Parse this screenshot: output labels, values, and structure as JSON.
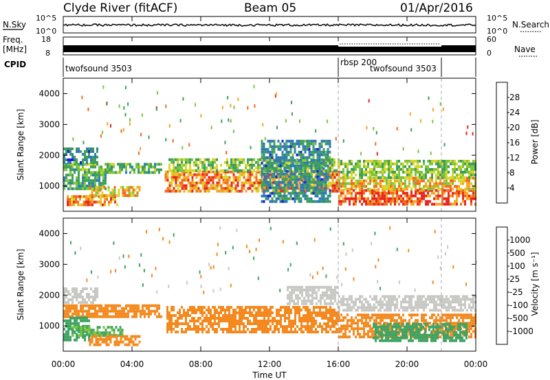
{
  "header": {
    "station": "Clyde River (fitACF)",
    "beam": "Beam 05",
    "date": "01/Apr/2016"
  },
  "strip_labels": {
    "nsky": "N.Sky",
    "nsky_ticks": [
      "10^5",
      "10^0"
    ],
    "freq": "Freq.",
    "freq_unit": "[MHz]",
    "freq_ticks": [
      "18",
      "8"
    ],
    "cpid": "CPID",
    "nsearch": "N.Search",
    "nsearch_ticks": [
      "10^5",
      "10^0"
    ],
    "nave": "Nave",
    "nave_ticks": [
      "60",
      "0"
    ]
  },
  "cpid_segments": [
    {
      "name": "twofsound 3503",
      "start": 0,
      "end": 16
    },
    {
      "name": "rbsp 200",
      "start": 16,
      "end": 22
    },
    {
      "name": "twofsound 3503",
      "start": 16,
      "end": 22
    }
  ],
  "x_axis": {
    "label": "Time UT",
    "ticks": [
      "00:00",
      "04:00",
      "08:00",
      "12:00",
      "16:00",
      "20:00",
      "00:00"
    ]
  },
  "y_axis": {
    "label": "Slant Range [km]",
    "ticks": [
      "1000",
      "2000",
      "3000",
      "4000"
    ]
  },
  "power_colorbar": {
    "label": "Power [dB]",
    "ticks": [
      "4",
      "8",
      "12",
      "16",
      "20",
      "24",
      "28"
    ],
    "colors": [
      "#1f1fd6",
      "#2f7ab8",
      "#3f9f5a",
      "#7cc63c",
      "#d9d52a",
      "#f5a623",
      "#f26a1b",
      "#e8251d"
    ]
  },
  "velocity_colorbar": {
    "label": "Velocity [m s⁻¹]",
    "ticks": [
      "1000",
      "500",
      "100",
      "25",
      "-25",
      "-100",
      "-500",
      "-1000"
    ],
    "colors": [
      "#2a56b8",
      "#3b8f8f",
      "#3fa463",
      "#7cc63c",
      "#c8c8c4",
      "#f5b93a",
      "#f48a1f",
      "#f06a10",
      "#e8251d"
    ]
  },
  "chart_data": [
    {
      "type": "heatmap",
      "title": "Power",
      "xlabel": "Time UT",
      "ylabel": "Slant Range [km]",
      "xlim": [
        0,
        24
      ],
      "ylim": [
        180,
        4500
      ],
      "colorbar": "Power [dB]",
      "clim": [
        0,
        32
      ],
      "bands": [
        {
          "t0": 0.0,
          "t1": 5.7,
          "r0": 1400,
          "r1": 1750,
          "value": 12
        },
        {
          "t0": 0.0,
          "t1": 2.0,
          "r0": 1750,
          "r1": 2250,
          "value": 8
        },
        {
          "t0": 0.0,
          "t1": 2.5,
          "r0": 900,
          "r1": 1400,
          "value": 10
        },
        {
          "t0": 0.2,
          "t1": 3.2,
          "r0": 420,
          "r1": 700,
          "value": 24
        },
        {
          "t0": 1.5,
          "t1": 4.5,
          "r0": 700,
          "r1": 1000,
          "value": 20
        },
        {
          "t0": 5.9,
          "t1": 16.0,
          "r0": 800,
          "r1": 1500,
          "value": 24
        },
        {
          "t0": 6.0,
          "t1": 16.0,
          "r0": 1500,
          "r1": 1900,
          "value": 14
        },
        {
          "t0": 11.5,
          "t1": 15.5,
          "r0": 500,
          "r1": 2500,
          "value": 8
        },
        {
          "t0": 16.0,
          "t1": 24.0,
          "r0": 450,
          "r1": 900,
          "value": 28
        },
        {
          "t0": 16.0,
          "t1": 24.0,
          "r0": 900,
          "r1": 1300,
          "value": 20
        },
        {
          "t0": 16.0,
          "t1": 24.0,
          "r0": 1300,
          "r1": 1850,
          "value": 14
        }
      ]
    },
    {
      "type": "heatmap",
      "title": "Velocity",
      "xlabel": "Time UT",
      "ylabel": "Slant Range [km]",
      "xlim": [
        0,
        24
      ],
      "ylim": [
        180,
        4500
      ],
      "colorbar": "Velocity [m s⁻¹]",
      "bands": [
        {
          "t0": 0.0,
          "t1": 2.0,
          "r0": 1750,
          "r1": 2250,
          "value": 0
        },
        {
          "t0": 0.0,
          "t1": 5.7,
          "r0": 1300,
          "r1": 1700,
          "value": -300
        },
        {
          "t0": 0.0,
          "t1": 1.5,
          "r0": 500,
          "r1": 1300,
          "value": 300
        },
        {
          "t0": 0.5,
          "t1": 3.5,
          "r0": 700,
          "r1": 1000,
          "value": 100
        },
        {
          "t0": 1.5,
          "t1": 4.5,
          "r0": 350,
          "r1": 700,
          "value": -200
        },
        {
          "t0": 6.0,
          "t1": 16.0,
          "r0": 800,
          "r1": 1650,
          "value": -400
        },
        {
          "t0": 13.0,
          "t1": 16.0,
          "r0": 1700,
          "r1": 2300,
          "value": 0
        },
        {
          "t0": 16.0,
          "t1": 24.0,
          "r0": 1500,
          "r1": 2000,
          "value": 0
        },
        {
          "t0": 16.0,
          "t1": 24.0,
          "r0": 600,
          "r1": 1400,
          "value": -400
        },
        {
          "t0": 18.0,
          "t1": 23.5,
          "r0": 500,
          "r1": 1100,
          "value": 200
        }
      ]
    }
  ]
}
